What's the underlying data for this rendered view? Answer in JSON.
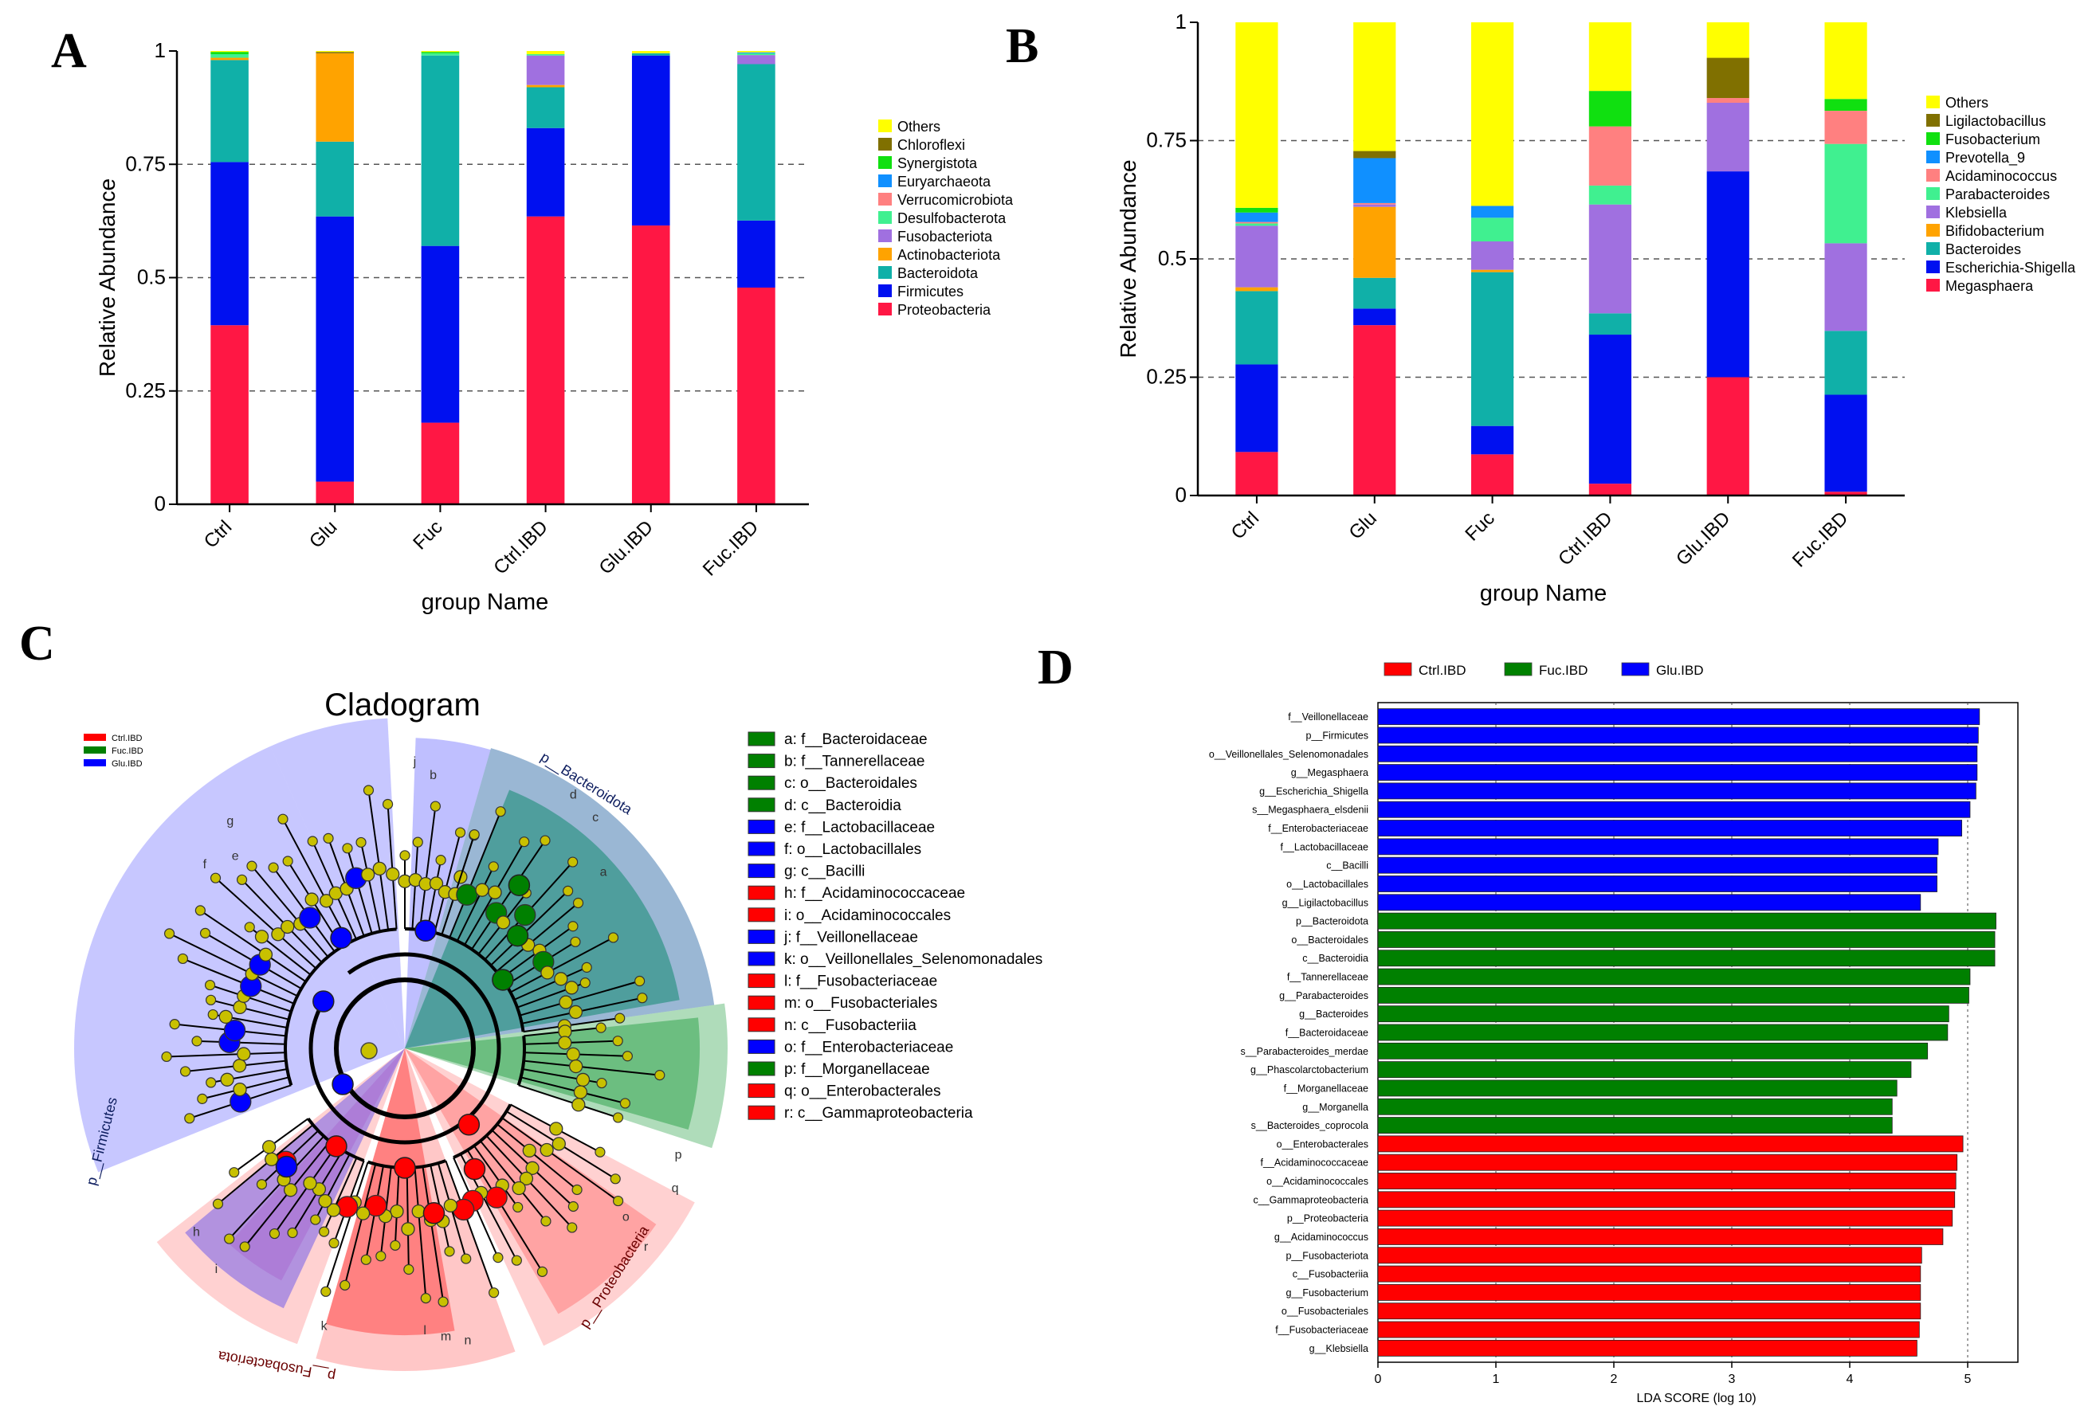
{
  "panels": {
    "a": "A",
    "b": "B",
    "c": "C",
    "d": "D"
  },
  "colors": {
    "Proteobacteria": "#ff1744",
    "Firmicutes": "#0010f0",
    "Bacteroidota": "#10b0a8",
    "Actinobacteriota": "#ffa300",
    "Fusobacteriota": "#a070e0",
    "Desulfobacterota": "#40f090",
    "Verrucomicrobiota": "#ff8080",
    "Euryarchaeota": "#1090ff",
    "Synergistota": "#10e010",
    "Chloroflexi": "#807000",
    "Others": "#ffff00",
    "ctrl": "#ff0000",
    "fuc": "#008000",
    "glu": "#0000ff"
  },
  "chart_data": [
    {
      "type": "bar",
      "id": "A",
      "stacked": true,
      "categories": [
        "Ctrl",
        "Glu",
        "Fuc",
        "Ctrl.IBD",
        "Glu.IBD",
        "Fuc.IBD"
      ],
      "xlabel": "group Name",
      "ylabel": "Relative Abundance",
      "ylim": [
        0,
        1
      ],
      "yticks": [
        "0",
        "0.25",
        "0.5",
        "0.75",
        "1"
      ],
      "legend_position": "right",
      "series": [
        {
          "name": "Proteobacteria",
          "values": [
            0.395,
            0.05,
            0.18,
            0.635,
            0.615,
            0.478
          ]
        },
        {
          "name": "Firmicutes",
          "values": [
            0.36,
            0.585,
            0.39,
            0.195,
            0.375,
            0.148
          ]
        },
        {
          "name": "Bacteroidota",
          "values": [
            0.225,
            0.165,
            0.42,
            0.09,
            0.005,
            0.345
          ]
        },
        {
          "name": "Actinobacteriota",
          "values": [
            0.005,
            0.195,
            0,
            0.005,
            0,
            0
          ]
        },
        {
          "name": "Fusobacteriota",
          "values": [
            0,
            0,
            0,
            0.065,
            0,
            0.02
          ]
        },
        {
          "name": "Desulfobacterota",
          "values": [
            0.008,
            0,
            0.005,
            0.003,
            0,
            0.004
          ]
        },
        {
          "name": "Verrucomicrobiota",
          "values": [
            0,
            0,
            0,
            0,
            0,
            0
          ]
        },
        {
          "name": "Euryarchaeota",
          "values": [
            0,
            0,
            0,
            0,
            0,
            0.002
          ]
        },
        {
          "name": "Synergistota",
          "values": [
            0.005,
            0,
            0.003,
            0,
            0,
            0
          ]
        },
        {
          "name": "Chloroflexi",
          "values": [
            0,
            0.003,
            0,
            0,
            0,
            0
          ]
        },
        {
          "name": "Others",
          "values": [
            0.002,
            0.002,
            0.002,
            0.007,
            0.005,
            0.003
          ]
        }
      ]
    },
    {
      "type": "bar",
      "id": "B",
      "stacked": true,
      "categories": [
        "Ctrl",
        "Glu",
        "Fuc",
        "Ctrl.IBD",
        "Glu.IBD",
        "Fuc.IBD"
      ],
      "xlabel": "group Name",
      "ylabel": "Relative Abundance",
      "ylim": [
        0,
        1
      ],
      "yticks": [
        "0",
        "0.25",
        "0.5",
        "0.75",
        "1"
      ],
      "legend_position": "right",
      "series": [
        {
          "name": "Megasphaera",
          "color": "#ff1744",
          "values": [
            0.092,
            0.36,
            0.087,
            0.025,
            0.25,
            0.008
          ]
        },
        {
          "name": "Escherichia-Shigella",
          "color": "#0010f0",
          "values": [
            0.185,
            0.035,
            0.06,
            0.315,
            0.435,
            0.205
          ]
        },
        {
          "name": "Bacteroides",
          "color": "#10b0a8",
          "values": [
            0.155,
            0.065,
            0.325,
            0.045,
            0,
            0.135
          ]
        },
        {
          "name": "Bifidobacterium",
          "color": "#ffa300",
          "values": [
            0.008,
            0.15,
            0.005,
            0,
            0,
            0
          ]
        },
        {
          "name": "Klebsiella",
          "color": "#a070e0",
          "values": [
            0.13,
            0.005,
            0.06,
            0.23,
            0.145,
            0.185
          ]
        },
        {
          "name": "Parabacteroides",
          "color": "#40f090",
          "values": [
            0.005,
            0,
            0.05,
            0.04,
            0,
            0.21
          ]
        },
        {
          "name": "Acidaminococcus",
          "color": "#ff8080",
          "values": [
            0.003,
            0.003,
            0,
            0.125,
            0.01,
            0.07
          ]
        },
        {
          "name": "Prevotella_9",
          "color": "#1090ff",
          "values": [
            0.02,
            0.095,
            0.025,
            0,
            0,
            0
          ]
        },
        {
          "name": "Fusobacterium",
          "color": "#10e010",
          "values": [
            0.01,
            0,
            0,
            0.075,
            0,
            0.025
          ]
        },
        {
          "name": "Ligilactobacillus",
          "color": "#807000",
          "values": [
            0,
            0.015,
            0,
            0,
            0.085,
            0
          ]
        },
        {
          "name": "Others",
          "color": "#ffff00",
          "values": [
            0.392,
            0.272,
            0.388,
            0.145,
            0.075,
            0.162
          ]
        }
      ]
    },
    {
      "type": "bar",
      "id": "D",
      "orientation": "horizontal",
      "xlabel": "LDA SCORE (log 10)",
      "xlim": [
        0,
        5.4
      ],
      "xticks": [
        "0",
        "1",
        "2",
        "3",
        "4",
        "5"
      ],
      "legend": [
        {
          "name": "Ctrl.IBD",
          "color": "#ff0000"
        },
        {
          "name": "Fuc.IBD",
          "color": "#008000"
        },
        {
          "name": "Glu.IBD",
          "color": "#0000ff"
        }
      ],
      "bars": [
        {
          "label": "f__Veillonellaceae",
          "value": 5.1,
          "group": "Glu.IBD"
        },
        {
          "label": "p__Firmicutes",
          "value": 5.09,
          "group": "Glu.IBD"
        },
        {
          "label": "o__Veillonellales_Selenomonadales",
          "value": 5.08,
          "group": "Glu.IBD"
        },
        {
          "label": "g__Megasphaera",
          "value": 5.08,
          "group": "Glu.IBD"
        },
        {
          "label": "g__Escherichia_Shigella",
          "value": 5.07,
          "group": "Glu.IBD"
        },
        {
          "label": "s__Megasphaera_elsdenii",
          "value": 5.02,
          "group": "Glu.IBD"
        },
        {
          "label": "f__Enterobacteriaceae",
          "value": 4.95,
          "group": "Glu.IBD"
        },
        {
          "label": "f__Lactobacillaceae",
          "value": 4.75,
          "group": "Glu.IBD"
        },
        {
          "label": "c__Bacilli",
          "value": 4.74,
          "group": "Glu.IBD"
        },
        {
          "label": "o__Lactobacillales",
          "value": 4.74,
          "group": "Glu.IBD"
        },
        {
          "label": "g__Ligilactobacillus",
          "value": 4.6,
          "group": "Glu.IBD"
        },
        {
          "label": "p__Bacteroidota",
          "value": 5.24,
          "group": "Fuc.IBD"
        },
        {
          "label": "o__Bacteroidales",
          "value": 5.23,
          "group": "Fuc.IBD"
        },
        {
          "label": "c__Bacteroidia",
          "value": 5.23,
          "group": "Fuc.IBD"
        },
        {
          "label": "f__Tannerellaceae",
          "value": 5.02,
          "group": "Fuc.IBD"
        },
        {
          "label": "g__Parabacteroides",
          "value": 5.01,
          "group": "Fuc.IBD"
        },
        {
          "label": "g__Bacteroides",
          "value": 4.84,
          "group": "Fuc.IBD"
        },
        {
          "label": "f__Bacteroidaceae",
          "value": 4.83,
          "group": "Fuc.IBD"
        },
        {
          "label": "s__Parabacteroides_merdae",
          "value": 4.66,
          "group": "Fuc.IBD"
        },
        {
          "label": "g__Phascolarctobacterium",
          "value": 4.52,
          "group": "Fuc.IBD"
        },
        {
          "label": "f__Morganellaceae",
          "value": 4.4,
          "group": "Fuc.IBD"
        },
        {
          "label": "g__Morganella",
          "value": 4.36,
          "group": "Fuc.IBD"
        },
        {
          "label": "s__Bacteroides_coprocola",
          "value": 4.36,
          "group": "Fuc.IBD"
        },
        {
          "label": "o__Enterobacterales",
          "value": 4.96,
          "group": "Ctrl.IBD"
        },
        {
          "label": "f__Acidaminococcaceae",
          "value": 4.91,
          "group": "Ctrl.IBD"
        },
        {
          "label": "o__Acidaminococcales",
          "value": 4.9,
          "group": "Ctrl.IBD"
        },
        {
          "label": "c__Gammaproteobacteria",
          "value": 4.89,
          "group": "Ctrl.IBD"
        },
        {
          "label": "p__Proteobacteria",
          "value": 4.87,
          "group": "Ctrl.IBD"
        },
        {
          "label": "g__Acidaminococcus",
          "value": 4.79,
          "group": "Ctrl.IBD"
        },
        {
          "label": "p__Fusobacteriota",
          "value": 4.61,
          "group": "Ctrl.IBD"
        },
        {
          "label": "c__Fusobacteriia",
          "value": 4.6,
          "group": "Ctrl.IBD"
        },
        {
          "label": "g__Fusobacterium",
          "value": 4.6,
          "group": "Ctrl.IBD"
        },
        {
          "label": "o__Fusobacteriales",
          "value": 4.6,
          "group": "Ctrl.IBD"
        },
        {
          "label": "f__Fusobacteriaceae",
          "value": 4.59,
          "group": "Ctrl.IBD"
        },
        {
          "label": "g__Klebsiella",
          "value": 4.57,
          "group": "Ctrl.IBD"
        }
      ]
    }
  ],
  "cladogram": {
    "title": "Cladogram",
    "small_legend": [
      {
        "name": "Ctrl.IBD",
        "color": "#ff0000"
      },
      {
        "name": "Fuc.IBD",
        "color": "#008000"
      },
      {
        "name": "Glu.IBD",
        "color": "#0000ff"
      }
    ],
    "key": [
      {
        "text": "a: f__Bacteroidaceae",
        "group": "fuc"
      },
      {
        "text": "b: f__Tannerellaceae",
        "group": "fuc"
      },
      {
        "text": "c: o__Bacteroidales",
        "group": "fuc"
      },
      {
        "text": "d: c__Bacteroidia",
        "group": "fuc"
      },
      {
        "text": "e: f__Lactobacillaceae",
        "group": "glu"
      },
      {
        "text": "f: o__Lactobacillales",
        "group": "glu"
      },
      {
        "text": "g: c__Bacilli",
        "group": "glu"
      },
      {
        "text": "h: f__Acidaminococcaceae",
        "group": "ctrl"
      },
      {
        "text": "i: o__Acidaminococcales",
        "group": "ctrl"
      },
      {
        "text": "j: f__Veillonellaceae",
        "group": "glu"
      },
      {
        "text": "k: o__Veillonellales_Selenomonadales",
        "group": "glu"
      },
      {
        "text": "l: f__Fusobacteriaceae",
        "group": "ctrl"
      },
      {
        "text": "m: o__Fusobacteriales",
        "group": "ctrl"
      },
      {
        "text": "n: c__Fusobacteriia",
        "group": "ctrl"
      },
      {
        "text": "o: f__Enterobacteriaceae",
        "group": "glu"
      },
      {
        "text": "p: f__Morganellaceae",
        "group": "fuc"
      },
      {
        "text": "q: o__Enterobacterales",
        "group": "ctrl"
      },
      {
        "text": "r: c__Gammaproteobacteria",
        "group": "ctrl"
      }
    ],
    "phylum_labels": {
      "bacteroidota": "p__Bacteroidota",
      "firmicutes": "p__Firmicutes",
      "proteobacteria": "p__Proteobacteria",
      "fusobacteriota": "p__Fusobacteriota"
    },
    "letters": [
      "a",
      "b",
      "c",
      "d",
      "e",
      "f",
      "g",
      "h",
      "i",
      "j",
      "k",
      "l",
      "m",
      "n",
      "o",
      "p",
      "q",
      "r"
    ]
  }
}
